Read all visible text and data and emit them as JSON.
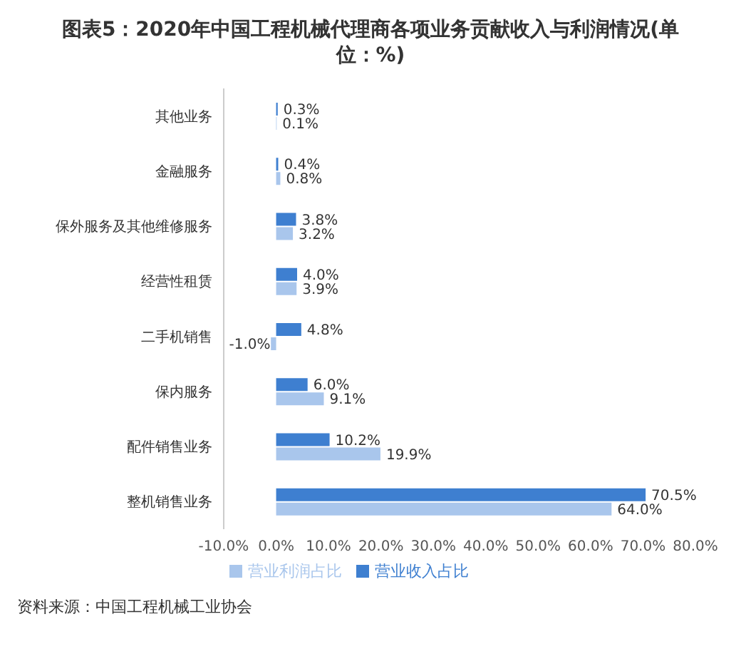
{
  "chart_data": {
    "type": "bar",
    "orientation": "horizontal",
    "title": "图表5：2020年中国工程机械代理商各项业务贡献收入与利润情况(单位：%)",
    "categories": [
      "其他业务",
      "金融服务",
      "保外服务及其他维修服务",
      "经营性租赁",
      "二手机销售",
      "保内服务",
      "配件销售业务",
      "整机销售业务"
    ],
    "series": [
      {
        "name": "营业收入占比",
        "color": "#3e7fd0",
        "values": [
          0.3,
          0.4,
          3.8,
          4.0,
          4.8,
          6.0,
          10.2,
          70.5
        ],
        "value_labels": [
          "0.3%",
          "0.4%",
          "3.8%",
          "4.0%",
          "4.8%",
          "6.0%",
          "10.2%",
          "70.5%"
        ]
      },
      {
        "name": "营业利润占比",
        "color": "#a9c6ec",
        "values": [
          0.1,
          0.8,
          3.2,
          3.9,
          -1.0,
          9.1,
          19.9,
          64.0
        ],
        "value_labels": [
          "0.1%",
          "0.8%",
          "3.2%",
          "3.9%",
          "-1.0%",
          "9.1%",
          "19.9%",
          "64.0%"
        ]
      }
    ],
    "xlim": [
      -10,
      80
    ],
    "xticks": [
      {
        "value": -10,
        "label": "-10.0%"
      },
      {
        "value": 0,
        "label": "0.0%"
      },
      {
        "value": 10,
        "label": "10.0%"
      },
      {
        "value": 20,
        "label": "20.0%"
      },
      {
        "value": 30,
        "label": "30.0%"
      },
      {
        "value": 40,
        "label": "40.0%"
      },
      {
        "value": 50,
        "label": "50.0%"
      },
      {
        "value": 60,
        "label": "60.0%"
      },
      {
        "value": 70,
        "label": "70.0%"
      },
      {
        "value": 80,
        "label": "80.0%"
      }
    ],
    "grid": false,
    "legend": "bottom",
    "annotations": [
      "资料来源：中国工程机械工业协会"
    ]
  }
}
